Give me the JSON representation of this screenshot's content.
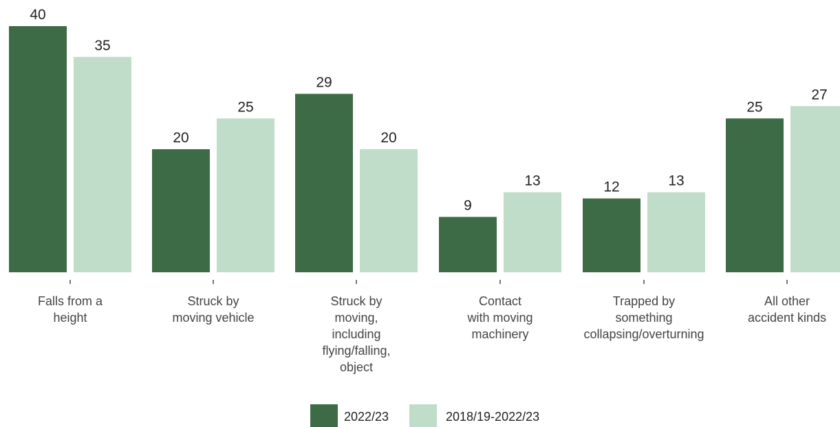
{
  "chart_data": {
    "type": "bar",
    "categories": [
      [
        "Falls from a",
        "height"
      ],
      [
        "Struck by",
        "moving vehicle"
      ],
      [
        "Struck by",
        "moving,",
        "including",
        "flying/falling,",
        "object"
      ],
      [
        "Contact",
        "with moving",
        "machinery"
      ],
      [
        "Trapped by",
        "something",
        "collapsing/overturning"
      ],
      [
        "All other",
        "accident kinds"
      ]
    ],
    "series": [
      {
        "name": "2022/23",
        "values": [
          40,
          20,
          29,
          9,
          12,
          25
        ],
        "color": "#3d6b45"
      },
      {
        "name": "2018/19-2022/23",
        "values": [
          35,
          25,
          20,
          13,
          13,
          27
        ],
        "color": "#bfddc8"
      }
    ],
    "ylim": [
      0,
      40
    ],
    "grid": false,
    "legend_position": "bottom-center",
    "title": "",
    "xlabel": "",
    "ylabel": ""
  }
}
